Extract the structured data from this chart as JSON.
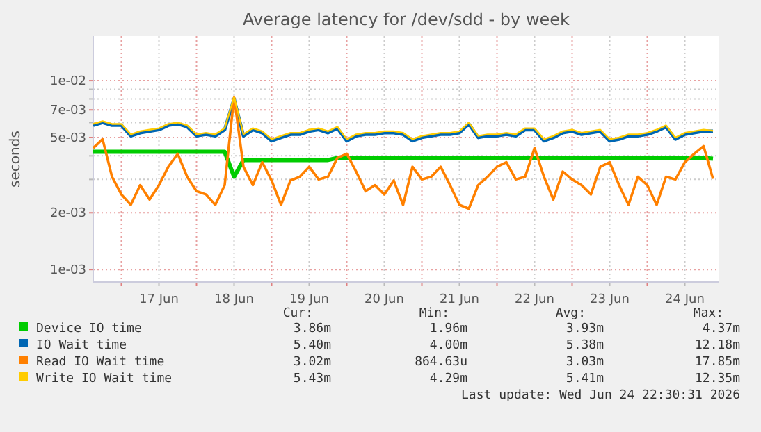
{
  "chart_data": {
    "type": "line",
    "title": "Average latency for /dev/sdd - by week",
    "ylabel": "seconds",
    "log": true,
    "grid": true,
    "legend": "bottom",
    "marker": "none",
    "line_style": "solid",
    "xlim": [
      "2026-06-16T15:00",
      "2026-06-24T23:00"
    ],
    "xticks": [
      {
        "value": "2026-06-17T00:00",
        "label": null
      },
      {
        "value": "2026-06-17T12:00",
        "label": "17 Jun"
      },
      {
        "value": "2026-06-18T00:00",
        "label": null
      },
      {
        "value": "2026-06-18T12:00",
        "label": "18 Jun"
      },
      {
        "value": "2026-06-19T00:00",
        "label": null
      },
      {
        "value": "2026-06-19T12:00",
        "label": "19 Jun"
      },
      {
        "value": "2026-06-20T00:00",
        "label": null
      },
      {
        "value": "2026-06-20T12:00",
        "label": "20 Jun"
      },
      {
        "value": "2026-06-21T00:00",
        "label": null
      },
      {
        "value": "2026-06-21T12:00",
        "label": "21 Jun"
      },
      {
        "value": "2026-06-22T00:00",
        "label": null
      },
      {
        "value": "2026-06-22T12:00",
        "label": "22 Jun"
      },
      {
        "value": "2026-06-23T00:00",
        "label": null
      },
      {
        "value": "2026-06-23T12:00",
        "label": "23 Jun"
      },
      {
        "value": "2026-06-24T00:00",
        "label": null
      },
      {
        "value": "2026-06-24T12:00",
        "label": "24 Jun"
      }
    ],
    "ylim": [
      0.00086,
      0.0172
    ],
    "yticks": [
      {
        "value": 0.001,
        "label": "1e-03"
      },
      {
        "value": 0.002,
        "label": "2e-03"
      },
      {
        "value": 0.003,
        "label": null
      },
      {
        "value": 0.004,
        "label": null
      },
      {
        "value": 0.005,
        "label": "5e-03"
      },
      {
        "value": 0.006,
        "label": null
      },
      {
        "value": 0.007,
        "label": "7e-03"
      },
      {
        "value": 0.008,
        "label": null
      },
      {
        "value": 0.009,
        "label": null
      },
      {
        "value": 0.01,
        "label": "1e-02"
      }
    ],
    "x": [
      "2026-06-16T15:00",
      "2026-06-16T18:00",
      "2026-06-16T21:00",
      "2026-06-17T00:00",
      "2026-06-17T03:00",
      "2026-06-17T06:00",
      "2026-06-17T09:00",
      "2026-06-17T12:00",
      "2026-06-17T15:00",
      "2026-06-17T18:00",
      "2026-06-17T21:00",
      "2026-06-18T00:00",
      "2026-06-18T03:00",
      "2026-06-18T06:00",
      "2026-06-18T09:00",
      "2026-06-18T12:00",
      "2026-06-18T15:00",
      "2026-06-18T18:00",
      "2026-06-18T21:00",
      "2026-06-19T00:00",
      "2026-06-19T03:00",
      "2026-06-19T06:00",
      "2026-06-19T09:00",
      "2026-06-19T12:00",
      "2026-06-19T15:00",
      "2026-06-19T18:00",
      "2026-06-19T21:00",
      "2026-06-20T00:00",
      "2026-06-20T03:00",
      "2026-06-20T06:00",
      "2026-06-20T09:00",
      "2026-06-20T12:00",
      "2026-06-20T15:00",
      "2026-06-20T18:00",
      "2026-06-20T21:00",
      "2026-06-21T00:00",
      "2026-06-21T03:00",
      "2026-06-21T06:00",
      "2026-06-21T09:00",
      "2026-06-21T12:00",
      "2026-06-21T15:00",
      "2026-06-21T18:00",
      "2026-06-21T21:00",
      "2026-06-22T00:00",
      "2026-06-22T03:00",
      "2026-06-22T06:00",
      "2026-06-22T09:00",
      "2026-06-22T12:00",
      "2026-06-22T15:00",
      "2026-06-22T18:00",
      "2026-06-22T21:00",
      "2026-06-23T00:00",
      "2026-06-23T03:00",
      "2026-06-23T06:00",
      "2026-06-23T09:00",
      "2026-06-23T12:00",
      "2026-06-23T15:00",
      "2026-06-23T18:00",
      "2026-06-23T21:00",
      "2026-06-24T00:00",
      "2026-06-24T03:00",
      "2026-06-24T06:00",
      "2026-06-24T09:00",
      "2026-06-24T12:00",
      "2026-06-24T15:00",
      "2026-06-24T18:00",
      "2026-06-24T21:00"
    ],
    "series": [
      {
        "name": "Device IO time",
        "color": "#00cc00",
        "values": [
          0.0042,
          0.0042,
          0.0042,
          0.0042,
          0.0042,
          0.0042,
          0.0042,
          0.0042,
          0.0042,
          0.0042,
          0.0042,
          0.0042,
          0.0042,
          0.0042,
          0.0042,
          0.0031,
          0.0038,
          0.0038,
          0.0038,
          0.0038,
          0.0038,
          0.0038,
          0.0038,
          0.0038,
          0.0038,
          0.0038,
          0.0039,
          0.0039,
          0.0039,
          0.0039,
          0.0039,
          0.0039,
          0.0039,
          0.0039,
          0.0039,
          0.0039,
          0.0039,
          0.0039,
          0.0039,
          0.0039,
          0.0039,
          0.0039,
          0.0039,
          0.0039,
          0.0039,
          0.0039,
          0.0039,
          0.0039,
          0.0039,
          0.0039,
          0.0039,
          0.0039,
          0.0039,
          0.0039,
          0.0039,
          0.0039,
          0.0039,
          0.0039,
          0.0039,
          0.0039,
          0.0039,
          0.0039,
          0.0039,
          0.0039,
          0.0039,
          0.0039,
          0.00386
        ]
      },
      {
        "name": "IO Wait time",
        "color": "#0066b3",
        "values": [
          0.0058,
          0.006,
          0.0058,
          0.0058,
          0.0051,
          0.0053,
          0.0054,
          0.0055,
          0.0058,
          0.0059,
          0.0057,
          0.0051,
          0.0052,
          0.0051,
          0.0055,
          0.008,
          0.0051,
          0.0055,
          0.0053,
          0.0048,
          0.005,
          0.0052,
          0.0052,
          0.0054,
          0.0055,
          0.0053,
          0.0056,
          0.0048,
          0.0051,
          0.0052,
          0.0052,
          0.0053,
          0.0053,
          0.0052,
          0.0048,
          0.005,
          0.0051,
          0.0052,
          0.0052,
          0.0053,
          0.0059,
          0.005,
          0.0051,
          0.0051,
          0.0052,
          0.0051,
          0.0055,
          0.0055,
          0.0048,
          0.005,
          0.0053,
          0.0054,
          0.0052,
          0.0053,
          0.0054,
          0.0048,
          0.0049,
          0.0051,
          0.0051,
          0.0052,
          0.0054,
          0.0057,
          0.0049,
          0.0052,
          0.0053,
          0.0054,
          0.0054
        ]
      },
      {
        "name": "Read IO Wait time",
        "color": "#ff8000",
        "values": [
          0.0044,
          0.0049,
          0.0031,
          0.0025,
          0.0022,
          0.0028,
          0.00235,
          0.0028,
          0.0035,
          0.0041,
          0.0031,
          0.0026,
          0.0025,
          0.0022,
          0.0028,
          0.0082,
          0.0035,
          0.0028,
          0.0037,
          0.00296,
          0.0022,
          0.00296,
          0.0031,
          0.0035,
          0.003,
          0.0031,
          0.0039,
          0.0041,
          0.0033,
          0.0026,
          0.0028,
          0.0025,
          0.00296,
          0.0022,
          0.0035,
          0.003,
          0.0031,
          0.0035,
          0.0028,
          0.0022,
          0.0021,
          0.0028,
          0.0031,
          0.0035,
          0.0037,
          0.003,
          0.0031,
          0.0044,
          0.0031,
          0.00235,
          0.0033,
          0.003,
          0.0028,
          0.0025,
          0.0035,
          0.0037,
          0.0028,
          0.0022,
          0.0031,
          0.0028,
          0.0022,
          0.0031,
          0.003,
          0.0037,
          0.0041,
          0.0045,
          0.00302
        ]
      },
      {
        "name": "Write IO Wait time",
        "color": "#ffcc00",
        "values": [
          0.0059,
          0.0061,
          0.0059,
          0.0059,
          0.0052,
          0.0054,
          0.0055,
          0.0056,
          0.0059,
          0.006,
          0.0058,
          0.0052,
          0.0053,
          0.0052,
          0.0056,
          0.0082,
          0.0052,
          0.0056,
          0.0054,
          0.0049,
          0.0051,
          0.0053,
          0.0053,
          0.0055,
          0.0056,
          0.0054,
          0.0057,
          0.0049,
          0.0052,
          0.0053,
          0.0053,
          0.0054,
          0.0054,
          0.0053,
          0.0049,
          0.0051,
          0.0052,
          0.0053,
          0.0053,
          0.0054,
          0.006,
          0.0051,
          0.0052,
          0.0052,
          0.0053,
          0.0052,
          0.0056,
          0.0056,
          0.0049,
          0.0051,
          0.0054,
          0.0055,
          0.0053,
          0.0054,
          0.0055,
          0.0049,
          0.005,
          0.0052,
          0.0052,
          0.0053,
          0.0055,
          0.0058,
          0.005,
          0.0053,
          0.0054,
          0.0055,
          0.00543
        ]
      }
    ],
    "annotations": [
      "Cur:",
      "Min:",
      "Avg:",
      "Max:",
      "3.86m",
      "1.96m",
      "3.93m",
      "4.37m",
      "5.40m",
      "4.00m",
      "5.38m",
      "12.18m",
      "3.02m",
      "864.63u",
      "3.03m",
      "17.85m",
      "5.43m",
      "4.29m",
      "5.41m",
      "12.35m",
      "Last update: Wed Jun 24 22:30:31 2026"
    ]
  }
}
